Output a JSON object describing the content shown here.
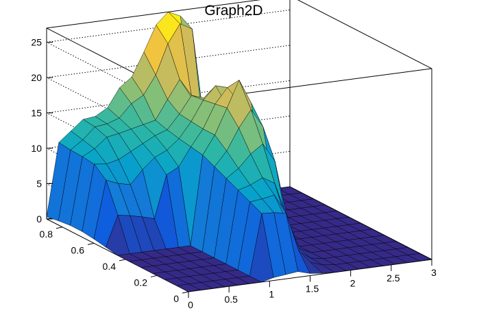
{
  "chart_data": {
    "type": "surface",
    "title": "Graph2D",
    "xlabel": "",
    "ylabel": "",
    "zlabel": "",
    "xlim": [
      0,
      3
    ],
    "ylim": [
      0,
      0.9
    ],
    "zlim": [
      0,
      27
    ],
    "grid": true,
    "x_ticks": [
      0,
      0.5,
      1,
      1.5,
      2,
      2.5,
      3
    ],
    "x_tick_labels": [
      "0",
      "0.5",
      "1",
      "1.5",
      "2",
      "2.5",
      "3"
    ],
    "y_ticks": [
      0,
      0.2,
      0.4,
      0.6,
      0.8
    ],
    "y_tick_labels": [
      "0",
      "0.2",
      "0.4",
      "0.6",
      "0.8"
    ],
    "z_ticks": [
      0,
      5,
      10,
      15,
      20,
      25
    ],
    "z_tick_labels": [
      "0",
      "5",
      "10",
      "15",
      "20",
      "25"
    ],
    "colormap": [
      "#352a87",
      "#0f5cdd",
      "#1481d6",
      "#06a4ca",
      "#2eb7a4",
      "#87bf77",
      "#d1bb59",
      "#fec832",
      "#f9fb0e"
    ],
    "surface_x": [
      0,
      0.15,
      0.3,
      0.45,
      0.6,
      0.75,
      0.9,
      1.05,
      1.2,
      1.35,
      1.5,
      1.65,
      1.8,
      1.95,
      2.1,
      2.25,
      2.4,
      2.55,
      2.7,
      2.85,
      3.0
    ],
    "surface_y": [
      0,
      0.075,
      0.15,
      0.225,
      0.3,
      0.375,
      0.45,
      0.525,
      0.6,
      0.675,
      0.75,
      0.825,
      0.9
    ],
    "surface_z": [
      [
        0,
        0,
        0,
        0,
        0,
        0,
        0,
        0.4,
        0.6,
        0.8,
        0.3,
        0.1,
        0,
        0,
        0,
        0,
        0,
        0,
        0,
        0,
        0
      ],
      [
        0,
        0,
        0,
        0,
        0,
        0,
        0,
        8.6,
        8.5,
        8.2,
        2.8,
        0.8,
        0.2,
        0,
        0,
        0,
        0,
        0,
        0,
        0,
        0
      ],
      [
        0,
        0,
        0,
        0,
        0,
        0,
        0,
        9.4,
        9.6,
        9.9,
        6.0,
        1.5,
        0.3,
        0,
        0,
        0,
        0,
        0,
        0,
        0,
        0
      ],
      [
        0,
        0,
        0,
        0,
        0,
        0,
        0,
        10.2,
        10.7,
        11.5,
        10.5,
        5.5,
        0.8,
        0,
        0,
        0,
        0,
        0,
        0,
        0,
        0
      ],
      [
        0,
        0,
        0,
        0,
        0,
        0,
        0,
        11.0,
        12.2,
        14.0,
        15.2,
        12.5,
        3.0,
        0,
        0,
        0,
        0,
        0,
        0,
        0,
        0
      ],
      [
        0,
        0,
        0,
        0,
        0,
        0,
        0,
        11.8,
        13.8,
        16.8,
        19.2,
        16.5,
        5.5,
        0,
        0,
        0,
        0,
        0,
        0,
        0,
        0
      ],
      [
        0,
        0,
        0,
        0,
        0,
        0,
        0,
        12.6,
        15.2,
        18.8,
        22.5,
        19.0,
        7.0,
        0.2,
        0,
        0,
        0,
        0,
        0,
        0,
        0
      ],
      [
        0.3,
        4.6,
        4.3,
        3.9,
        3.4,
        9.4,
        10.3,
        12.9,
        15.2,
        18.5,
        20.6,
        18.2,
        7.5,
        0.5,
        0,
        0,
        0,
        0,
        0,
        0,
        0
      ],
      [
        0.6,
        8.7,
        8.0,
        7.6,
        9.5,
        11.0,
        11.8,
        13.2,
        15.4,
        18.2,
        20.0,
        16.8,
        7.2,
        0.4,
        0,
        0,
        0,
        0,
        0,
        0,
        0
      ],
      [
        0.8,
        10.1,
        9.9,
        10.3,
        11.2,
        12.1,
        13.0,
        13.6,
        15.6,
        18.0,
        17.4,
        14.4,
        6.8,
        0.3,
        0,
        0,
        0,
        0,
        0,
        0,
        0
      ],
      [
        0.8,
        10.3,
        11.2,
        12.6,
        12.9,
        13.3,
        13.7,
        14.1,
        16.8,
        19.4,
        16.5,
        12.9,
        6.0,
        0.2,
        0,
        0,
        0,
        0,
        0,
        0,
        0
      ],
      [
        0.6,
        10.4,
        11.6,
        13.2,
        13.4,
        14.0,
        15.8,
        16.8,
        19.4,
        23.6,
        26.2,
        25.2,
        9.5,
        0.1,
        0,
        0,
        0,
        0,
        0,
        0,
        0
      ],
      [
        0.3,
        10.6,
        12.0,
        13.4,
        13.6,
        14.6,
        17.2,
        18.5,
        21.8,
        25.4,
        27.0,
        26.2,
        10.4,
        0,
        0,
        0,
        0,
        0,
        0,
        0,
        0
      ]
    ]
  }
}
